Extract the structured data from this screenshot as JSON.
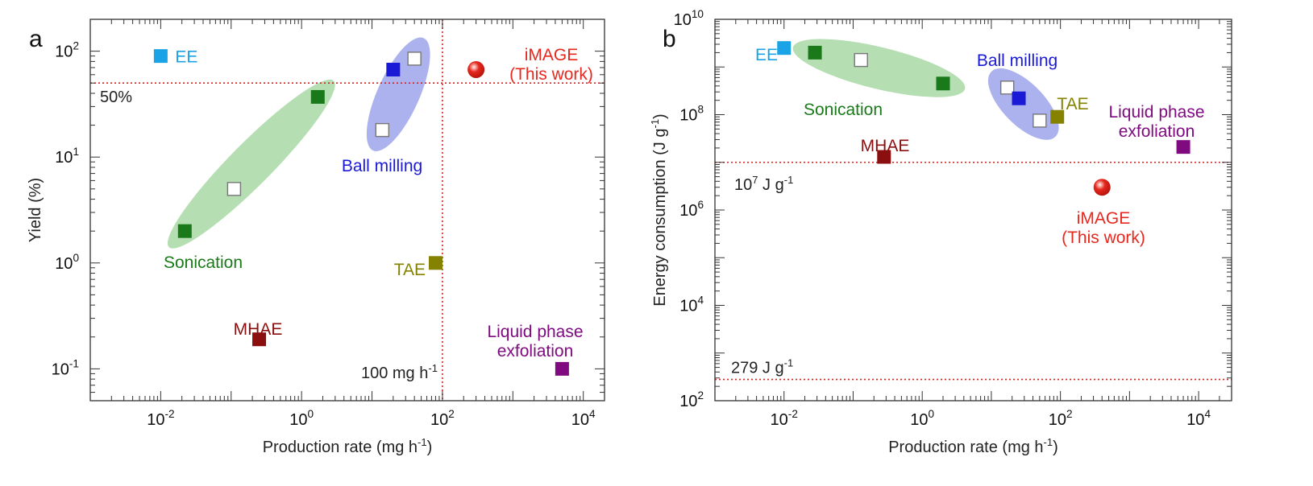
{
  "figure": {
    "panel_a_letter": "a",
    "panel_b_letter": "b",
    "colors": {
      "blue": "#1a1ad6",
      "green": "#1a7a1a",
      "lightblue": "#1aa3e6",
      "red": "#e6281e",
      "maroon": "#8b0f0f",
      "olive": "#858200",
      "purple": "#800a80",
      "green_fill": "#a8d8a4",
      "blue_fill": "#9ea5ea",
      "refline": "#d82020"
    }
  },
  "chart_data": [
    {
      "type": "scatter",
      "panel": "a",
      "xlabel": "Production rate  (mg h⁻¹)",
      "ylabel": "Yield (%)",
      "xscale": "log",
      "yscale": "log",
      "xlim": [
        0.001,
        20000
      ],
      "ylim": [
        0.05,
        200
      ],
      "x_ticks": [
        {
          "base": "10",
          "exp": "-2",
          "value": 0.01
        },
        {
          "base": "10",
          "exp": "0",
          "value": 1
        },
        {
          "base": "10",
          "exp": "2",
          "value": 100
        },
        {
          "base": "10",
          "exp": "4",
          "value": 10000
        }
      ],
      "y_ticks": [
        {
          "base": "10",
          "exp": "-1",
          "value": 0.1
        },
        {
          "base": "10",
          "exp": "0",
          "value": 1
        },
        {
          "base": "10",
          "exp": "1",
          "value": 10
        },
        {
          "base": "10",
          "exp": "2",
          "value": 100
        }
      ],
      "ref_lines": [
        {
          "axis": "y",
          "value": 50,
          "label": "50%"
        },
        {
          "axis": "x",
          "value": 100,
          "label": "100 mg h",
          "label_sup": "-1"
        }
      ],
      "series": [
        {
          "name": "EE",
          "color": "lightblue",
          "marker": "square",
          "points": [
            {
              "x": 0.01,
              "y": 90
            }
          ]
        },
        {
          "name": "Sonication",
          "color": "green",
          "marker": "square",
          "points": [
            {
              "x": 0.022,
              "y": 2
            },
            {
              "x": 0.11,
              "y": 5,
              "hollow": true
            },
            {
              "x": 1.7,
              "y": 37
            }
          ]
        },
        {
          "name": "Ball milling",
          "color": "blue",
          "marker": "square",
          "points": [
            {
              "x": 14,
              "y": 18,
              "hollow": true
            },
            {
              "x": 20,
              "y": 67
            },
            {
              "x": 40,
              "y": 85,
              "hollow": true
            }
          ]
        },
        {
          "name": "iMAGE\n(This work)",
          "color": "red",
          "marker": "circle",
          "points": [
            {
              "x": 300,
              "y": 67
            }
          ]
        },
        {
          "name": "TAE",
          "color": "olive",
          "marker": "square",
          "points": [
            {
              "x": 80,
              "y": 1
            }
          ]
        },
        {
          "name": "MHAE",
          "color": "maroon",
          "marker": "square",
          "points": [
            {
              "x": 0.25,
              "y": 0.19
            }
          ]
        },
        {
          "name": "Liquid phase\nexfoliation",
          "color": "purple",
          "marker": "square",
          "points": [
            {
              "x": 5000,
              "y": 0.1
            }
          ]
        }
      ]
    },
    {
      "type": "scatter",
      "panel": "b",
      "xlabel": "Production rate  (mg h⁻¹)",
      "ylabel": "Energy consumption (J g⁻¹)",
      "xscale": "log",
      "yscale": "log",
      "xlim": [
        0.001,
        30000
      ],
      "ylim": [
        100,
        10000000000
      ],
      "x_ticks": [
        {
          "base": "10",
          "exp": "-2",
          "value": 0.01
        },
        {
          "base": "10",
          "exp": "0",
          "value": 1
        },
        {
          "base": "10",
          "exp": "2",
          "value": 100
        },
        {
          "base": "10",
          "exp": "4",
          "value": 10000
        }
      ],
      "y_ticks": [
        {
          "base": "10",
          "exp": "2",
          "value": 100
        },
        {
          "base": "10",
          "exp": "4",
          "value": 10000
        },
        {
          "base": "10",
          "exp": "6",
          "value": 1000000
        },
        {
          "base": "10",
          "exp": "8",
          "value": 100000000
        },
        {
          "base": "10",
          "exp": "10",
          "value": 10000000000
        }
      ],
      "ref_lines": [
        {
          "axis": "y",
          "value": 10000000,
          "label": "10",
          "label_sup": "7",
          "label_tail": " J g",
          "label_sup2": "-1"
        },
        {
          "axis": "y",
          "value": 279,
          "label": "279 J g",
          "label_sup": "-1"
        }
      ],
      "series": [
        {
          "name": "EE",
          "color": "lightblue",
          "marker": "square",
          "points": [
            {
              "x": 0.01,
              "y": 2500000000
            }
          ]
        },
        {
          "name": "Sonication",
          "color": "green",
          "marker": "square",
          "points": [
            {
              "x": 0.028,
              "y": 2000000000
            },
            {
              "x": 0.13,
              "y": 1400000000,
              "hollow": true
            },
            {
              "x": 2,
              "y": 450000000
            }
          ]
        },
        {
          "name": "Ball milling",
          "color": "blue",
          "marker": "square",
          "points": [
            {
              "x": 17,
              "y": 370000000,
              "hollow": true
            },
            {
              "x": 25,
              "y": 220000000
            },
            {
              "x": 50,
              "y": 75000000,
              "hollow": true
            }
          ]
        },
        {
          "name": "TAE",
          "color": "olive",
          "marker": "square",
          "points": [
            {
              "x": 90,
              "y": 90000000
            }
          ]
        },
        {
          "name": "Liquid phase\nexfoliation",
          "color": "purple",
          "marker": "square",
          "points": [
            {
              "x": 6000,
              "y": 21000000
            }
          ]
        },
        {
          "name": "MHAE",
          "color": "maroon",
          "marker": "square",
          "points": [
            {
              "x": 0.28,
              "y": 13000000
            }
          ]
        },
        {
          "name": "iMAGE\n(This work)",
          "color": "red",
          "marker": "circle",
          "points": [
            {
              "x": 400,
              "y": 3000000
            }
          ]
        }
      ]
    }
  ]
}
